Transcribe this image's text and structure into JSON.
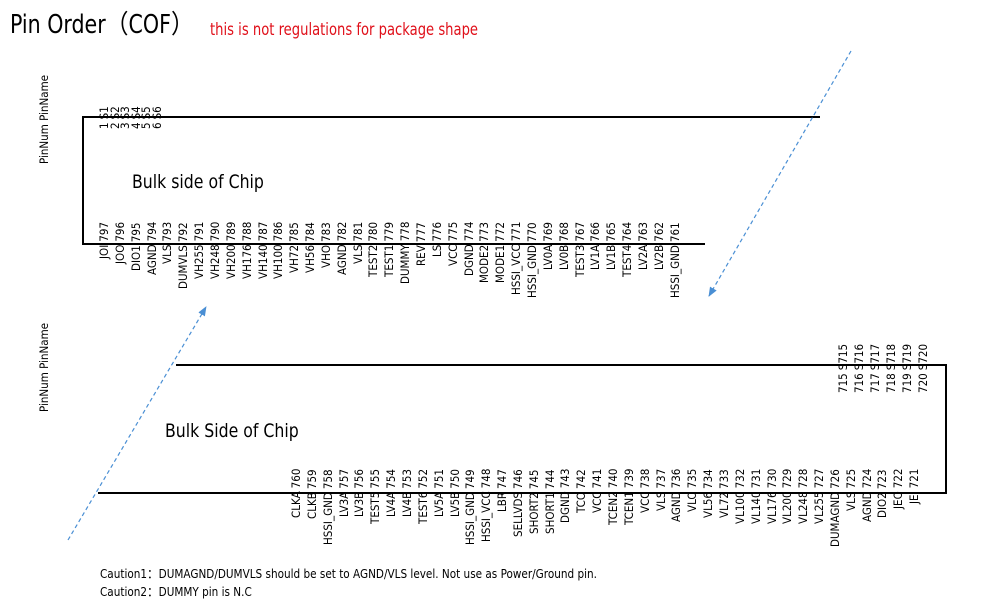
{
  "header": {
    "title": "Pin Order（COF）",
    "subtitle": "this is not regulations for package shape"
  },
  "colors": {
    "text": "#000000",
    "note": "#e0101a",
    "arrow": "#4a8fd4"
  },
  "column_header": "PinNum PinName",
  "chip_top": {
    "label": "Bulk side of Chip",
    "top_pins": [
      {
        "num": "1",
        "name": "S1"
      },
      {
        "num": "2",
        "name": "S2"
      },
      {
        "num": "3",
        "name": "S3"
      },
      {
        "num": "4",
        "name": "S4"
      },
      {
        "num": "5",
        "name": "S5"
      },
      {
        "num": "6",
        "name": "S6"
      }
    ],
    "bottom_pins": [
      {
        "num": "797",
        "name": "JOI"
      },
      {
        "num": "796",
        "name": "JOO"
      },
      {
        "num": "795",
        "name": "DIO1"
      },
      {
        "num": "794",
        "name": "AGND"
      },
      {
        "num": "793",
        "name": "VLS"
      },
      {
        "num": "792",
        "name": "DUMVLS"
      },
      {
        "num": "791",
        "name": "VH255"
      },
      {
        "num": "790",
        "name": "VH248"
      },
      {
        "num": "789",
        "name": "VH200"
      },
      {
        "num": "788",
        "name": "VH176"
      },
      {
        "num": "787",
        "name": "VH140"
      },
      {
        "num": "786",
        "name": "VH100"
      },
      {
        "num": "785",
        "name": "VH72"
      },
      {
        "num": "784",
        "name": "VH56"
      },
      {
        "num": "783",
        "name": "VHO"
      },
      {
        "num": "782",
        "name": "AGND"
      },
      {
        "num": "781",
        "name": "VLS"
      },
      {
        "num": "780",
        "name": "TEST2"
      },
      {
        "num": "779",
        "name": "TEST1"
      },
      {
        "num": "778",
        "name": "DUMMY"
      },
      {
        "num": "777",
        "name": "REV"
      },
      {
        "num": "776",
        "name": "LS"
      },
      {
        "num": "775",
        "name": "VCC"
      },
      {
        "num": "774",
        "name": "DGND"
      },
      {
        "num": "773",
        "name": "MODE2"
      },
      {
        "num": "772",
        "name": "MODE1"
      },
      {
        "num": "771",
        "name": "HSSI_VCC"
      },
      {
        "num": "770",
        "name": "HSSI_GND"
      },
      {
        "num": "769",
        "name": "LV0A"
      },
      {
        "num": "768",
        "name": "LV0B"
      },
      {
        "num": "767",
        "name": "TEST3"
      },
      {
        "num": "766",
        "name": "LV1A"
      },
      {
        "num": "765",
        "name": "LV1B"
      },
      {
        "num": "764",
        "name": "TEST4"
      },
      {
        "num": "763",
        "name": "LV2A"
      },
      {
        "num": "762",
        "name": "LV2B"
      },
      {
        "num": "761",
        "name": "HSSI_GND"
      }
    ]
  },
  "chip_bottom": {
    "label": "Bulk Side of Chip",
    "top_pins": [
      {
        "num": "715",
        "name": "S715"
      },
      {
        "num": "716",
        "name": "S716"
      },
      {
        "num": "717",
        "name": "S717"
      },
      {
        "num": "718",
        "name": "S718"
      },
      {
        "num": "719",
        "name": "S719"
      },
      {
        "num": "720",
        "name": "S720"
      }
    ],
    "bottom_pins": [
      {
        "num": "760",
        "name": "CLKA"
      },
      {
        "num": "759",
        "name": "CLKB"
      },
      {
        "num": "758",
        "name": "HSSI_GND"
      },
      {
        "num": "757",
        "name": "LV3A"
      },
      {
        "num": "756",
        "name": "LV3B"
      },
      {
        "num": "755",
        "name": "TEST5"
      },
      {
        "num": "754",
        "name": "LV4A"
      },
      {
        "num": "753",
        "name": "LV4B"
      },
      {
        "num": "752",
        "name": "TEST6"
      },
      {
        "num": "751",
        "name": "LV5A"
      },
      {
        "num": "750",
        "name": "LV5B"
      },
      {
        "num": "749",
        "name": "HSSI_GND"
      },
      {
        "num": "748",
        "name": "HSSI_VCC"
      },
      {
        "num": "747",
        "name": "LBR"
      },
      {
        "num": "746",
        "name": "SELLVDS"
      },
      {
        "num": "745",
        "name": "SHORT2"
      },
      {
        "num": "744",
        "name": "SHORT1"
      },
      {
        "num": "743",
        "name": "DGND"
      },
      {
        "num": "742",
        "name": "TCO"
      },
      {
        "num": "741",
        "name": "VCC"
      },
      {
        "num": "740",
        "name": "TCEN2"
      },
      {
        "num": "739",
        "name": "TCEN1"
      },
      {
        "num": "738",
        "name": "VCC"
      },
      {
        "num": "737",
        "name": "VLS"
      },
      {
        "num": "736",
        "name": "AGND"
      },
      {
        "num": "735",
        "name": "VLO"
      },
      {
        "num": "734",
        "name": "VL56"
      },
      {
        "num": "733",
        "name": "VL72"
      },
      {
        "num": "732",
        "name": "VL100"
      },
      {
        "num": "731",
        "name": "VL140"
      },
      {
        "num": "730",
        "name": "VL176"
      },
      {
        "num": "729",
        "name": "VL200"
      },
      {
        "num": "728",
        "name": "VL248"
      },
      {
        "num": "727",
        "name": "VL255"
      },
      {
        "num": "726",
        "name": "DUMAGND"
      },
      {
        "num": "725",
        "name": "VLS"
      },
      {
        "num": "724",
        "name": "AGND"
      },
      {
        "num": "723",
        "name": "DIO2"
      },
      {
        "num": "722",
        "name": "JEO"
      },
      {
        "num": "721",
        "name": "JEI"
      }
    ]
  },
  "cautions": [
    "Caution1：DUMAGND/DUMVLS should be set to AGND/VLS level. Not use as Power/Ground pin.",
    "Caution2：DUMMY pin is N.C"
  ]
}
